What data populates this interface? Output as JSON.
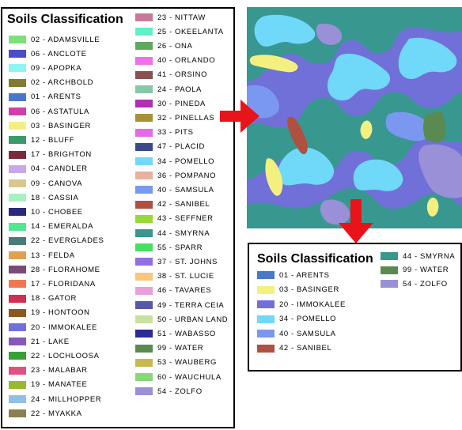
{
  "main_legend": {
    "title": "Soils Classification",
    "left_column": [
      {
        "label": "02 - ADAMSVILLE",
        "color": "#7ee07a"
      },
      {
        "label": "06 - ANCLOTE",
        "color": "#4a4fc8"
      },
      {
        "label": "09 - APOPKA",
        "color": "#8ff4f4"
      },
      {
        "label": "02 - ARCHBOLD",
        "color": "#827a30"
      },
      {
        "label": "01 - ARENTS",
        "color": "#4a78c8"
      },
      {
        "label": "06 - ASTATULA",
        "color": "#d040a8"
      },
      {
        "label": "03 - BASINGER",
        "color": "#f4f080"
      },
      {
        "label": "12 - BLUFF",
        "color": "#3a9a6a"
      },
      {
        "label": "17 - BRIGHTON",
        "color": "#7a2a3a"
      },
      {
        "label": "04 - CANDLER",
        "color": "#c8a8e8"
      },
      {
        "label": "09 - CANOVA",
        "color": "#d8c890"
      },
      {
        "label": "18 - CASSIA",
        "color": "#a8f0c0"
      },
      {
        "label": "10 - CHOBEE",
        "color": "#2a2a7a"
      },
      {
        "label": "14 - EMERALDA",
        "color": "#50e890"
      },
      {
        "label": "22 - EVERGLADES",
        "color": "#4a7a7a"
      },
      {
        "label": "13 - FELDA",
        "color": "#e0a050"
      },
      {
        "label": "28 - FLORAHOME",
        "color": "#7a4a7a"
      },
      {
        "label": "17 - FLORIDANA",
        "color": "#f07850"
      },
      {
        "label": "18 - GATOR",
        "color": "#d03050"
      },
      {
        "label": "19 - HONTOON",
        "color": "#8a5a20"
      },
      {
        "label": "20 - IMMOKALEE",
        "color": "#7070d8"
      },
      {
        "label": "21 - LAKE",
        "color": "#8858b8"
      },
      {
        "label": "22 - LOCHLOOSA",
        "color": "#38a038"
      },
      {
        "label": "23 - MALABAR",
        "color": "#e05080"
      },
      {
        "label": "19 - MANATEE",
        "color": "#98b830"
      },
      {
        "label": "24 - MILLHOPPER",
        "color": "#90c0e8"
      },
      {
        "label": "22 - MYAKKA",
        "color": "#8a8050"
      }
    ],
    "right_column": [
      {
        "label": "23 - NITTAW",
        "color": "#c87898"
      },
      {
        "label": "25 - OKEELANTA",
        "color": "#60f0c8"
      },
      {
        "label": "26 - ONA",
        "color": "#60a860"
      },
      {
        "label": "40 - ORLANDO",
        "color": "#f070e8"
      },
      {
        "label": "41 - ORSINO",
        "color": "#8a5050"
      },
      {
        "label": "24 - PAOLA",
        "color": "#88c8a8"
      },
      {
        "label": "30 - PINEDA",
        "color": "#b030b0"
      },
      {
        "label": "32 - PINELLAS",
        "color": "#a89038"
      },
      {
        "label": "33 - PITS",
        "color": "#e868e8"
      },
      {
        "label": "47 - PLACID",
        "color": "#3a4a8a"
      },
      {
        "label": "34 - POMELLO",
        "color": "#70d8f8"
      },
      {
        "label": "36 - POMPANO",
        "color": "#e8b0a0"
      },
      {
        "label": "40 - SAMSULA",
        "color": "#7a98f0"
      },
      {
        "label": "42 - SANIBEL",
        "color": "#b05040"
      },
      {
        "label": "43 - SEFFNER",
        "color": "#98d838"
      },
      {
        "label": "44 - SMYRNA",
        "color": "#389890"
      },
      {
        "label": "55 - SPARR",
        "color": "#48e060"
      },
      {
        "label": "37 - ST. JOHNS",
        "color": "#9070e0"
      },
      {
        "label": "38 - ST. LUCIE",
        "color": "#f8c878"
      },
      {
        "label": "46 - TAVARES",
        "color": "#e8a0d8"
      },
      {
        "label": "49 - TERRA CEIA",
        "color": "#5858a8"
      },
      {
        "label": "50 - URBAN LAND",
        "color": "#c8e0a0"
      },
      {
        "label": "51 - WABASSO",
        "color": "#2a2a98"
      },
      {
        "label": "99 - WATER",
        "color": "#5a8a50"
      },
      {
        "label": "53 - WAUBERG",
        "color": "#c8b850"
      },
      {
        "label": "60 - WAUCHULA",
        "color": "#88d878"
      },
      {
        "label": "54 - ZOLFO",
        "color": "#9a90d8"
      }
    ]
  },
  "sub_legend": {
    "title": "Soils Classification",
    "items_left": [
      {
        "label": "01 - ARENTS",
        "color": "#4a78c8"
      },
      {
        "label": "03 - BASINGER",
        "color": "#f4f080"
      },
      {
        "label": "20 - IMMOKALEE",
        "color": "#7070d8"
      },
      {
        "label": "34 - POMELLO",
        "color": "#70d8f8"
      },
      {
        "label": "40 - SAMSULA",
        "color": "#7a98f0"
      },
      {
        "label": "42 - SANIBEL",
        "color": "#b05040"
      }
    ],
    "items_right": [
      {
        "label": "44 - SMYRNA",
        "color": "#389890"
      },
      {
        "label": "99 - WATER",
        "color": "#5a8a50"
      },
      {
        "label": "54 - ZOLFO",
        "color": "#9a90d8"
      }
    ]
  },
  "colors": {
    "arrow": "#e8141a",
    "map_base": "#7070d8",
    "map_smyrna": "#389890",
    "map_pomello": "#70d8f8",
    "map_samsula": "#7a98f0",
    "map_zolfo": "#9a90d8",
    "map_basinger": "#f4f080",
    "map_sanibel": "#b05040",
    "map_water": "#5a8a50"
  }
}
